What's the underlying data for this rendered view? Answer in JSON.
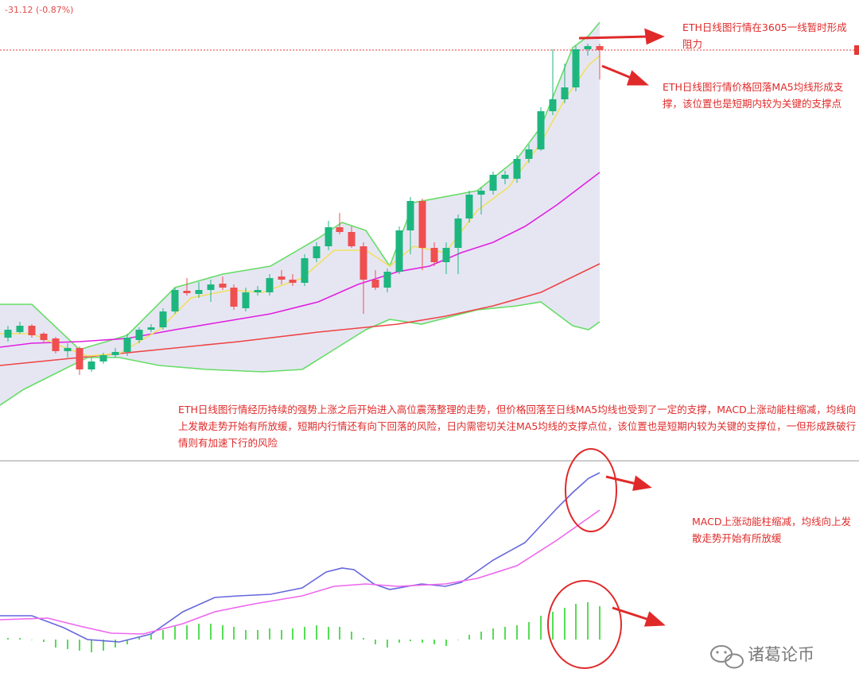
{
  "header": {
    "change": "-31.12 (-0.87%)"
  },
  "chart_data": [
    {
      "type": "candlestick",
      "x": [
        10,
        25,
        40,
        55,
        70,
        85,
        100,
        115,
        130,
        145,
        160,
        175,
        190,
        205,
        220,
        235,
        250,
        265,
        280,
        294,
        309,
        324,
        339,
        354,
        368,
        383,
        398,
        413,
        427,
        442,
        457,
        472,
        487,
        502,
        516,
        531,
        546,
        561,
        576,
        590,
        605,
        620,
        635,
        650,
        665,
        680,
        695,
        710,
        724,
        739,
        754
      ],
      "open": [
        155,
        162,
        170,
        160,
        154,
        138,
        142,
        115,
        125,
        133,
        137,
        152,
        165,
        168,
        188,
        214,
        210,
        215,
        223,
        218,
        192,
        212,
        212,
        232,
        228,
        224,
        255,
        270,
        294,
        288,
        270,
        228,
        218,
        238,
        290,
        327,
        268,
        250,
        268,
        305,
        335,
        340,
        355,
        355,
        380,
        392,
        440,
        455,
        470,
        518,
        522
      ],
      "high": [
        170,
        175,
        172,
        162,
        156,
        148,
        144,
        130,
        136,
        142,
        160,
        168,
        172,
        192,
        218,
        230,
        225,
        228,
        232,
        222,
        218,
        220,
        235,
        240,
        235,
        260,
        275,
        302,
        312,
        295,
        275,
        240,
        242,
        295,
        332,
        330,
        275,
        275,
        310,
        340,
        344,
        364,
        365,
        385,
        398,
        445,
        518,
        500,
        522,
        525,
        525
      ],
      "low": [
        150,
        160,
        155,
        148,
        135,
        130,
        108,
        112,
        122,
        130,
        132,
        148,
        162,
        165,
        185,
        208,
        205,
        200,
        215,
        190,
        188,
        208,
        208,
        222,
        220,
        220,
        250,
        265,
        285,
        268,
        185,
        215,
        212,
        235,
        260,
        240,
        245,
        235,
        235,
        300,
        310,
        335,
        348,
        350,
        375,
        390,
        435,
        450,
        465,
        510,
        480
      ],
      "close": [
        165,
        170,
        158,
        152,
        138,
        142,
        115,
        125,
        133,
        137,
        155,
        165,
        168,
        188,
        215,
        211,
        215,
        222,
        218,
        194,
        212,
        215,
        230,
        228,
        224,
        255,
        270,
        294,
        288,
        270,
        228,
        218,
        238,
        290,
        327,
        268,
        250,
        268,
        305,
        335,
        340,
        360,
        360,
        380,
        392,
        440,
        455,
        470,
        518,
        522,
        517
      ],
      "up_color": "#1db67f",
      "down_color": "#ef4f4f",
      "band_fill": "#e6e6f3",
      "xlim": [
        0,
        1080
      ],
      "ylim": [
        0,
        580
      ],
      "price_line": 517,
      "price_line_color": "#e53935",
      "series": [
        {
          "color": "#66dd66",
          "x": [
            0,
            40,
            100,
            160,
            220,
            280,
            340,
            400,
            430,
            460,
            490,
            520,
            600,
            650,
            680,
            700,
            720,
            740,
            754
          ],
          "values": [
            197,
            197,
            140,
            158,
            218,
            235,
            245,
            280,
            300,
            290,
            245,
            325,
            340,
            380,
            420,
            470,
            520,
            535,
            552
          ]
        },
        {
          "color": "#66dd66",
          "x": [
            0,
            30,
            70,
            110,
            150,
            200,
            260,
            330,
            380,
            420,
            460,
            490,
            530,
            600,
            650,
            680,
            700,
            720,
            740,
            754
          ],
          "values": [
            70,
            90,
            110,
            130,
            130,
            120,
            115,
            112,
            115,
            140,
            165,
            178,
            172,
            190,
            195,
            200,
            185,
            170,
            165,
            175
          ]
        },
        {
          "color": "#ee4444",
          "x": [
            0,
            100,
            200,
            300,
            400,
            500,
            560,
            620,
            680,
            754
          ],
          "values": [
            120,
            130,
            140,
            150,
            162,
            172,
            182,
            195,
            212,
            248
          ]
        },
        {
          "color": "#e020e0",
          "x": [
            0,
            40,
            100,
            160,
            220,
            280,
            340,
            400,
            450,
            500,
            540,
            580,
            620,
            660,
            700,
            754
          ],
          "values": [
            143,
            148,
            150,
            154,
            165,
            175,
            185,
            200,
            222,
            238,
            245,
            262,
            275,
            295,
            322,
            363
          ]
        },
        {
          "color": "#f0e060",
          "x": [
            0,
            40,
            80,
            110,
            150,
            200,
            240,
            290,
            330,
            380,
            420,
            460,
            490,
            520,
            560,
            600,
            640,
            680,
            710,
            740,
            754
          ],
          "values": [
            160,
            160,
            143,
            132,
            135,
            165,
            205,
            215,
            212,
            230,
            265,
            265,
            245,
            270,
            262,
            315,
            345,
            400,
            455,
            498,
            510
          ]
        }
      ]
    },
    {
      "type": "macd",
      "x": [
        10,
        25,
        40,
        55,
        70,
        85,
        100,
        115,
        130,
        145,
        160,
        175,
        190,
        205,
        220,
        235,
        250,
        265,
        280,
        294,
        309,
        324,
        339,
        354,
        368,
        383,
        398,
        413,
        427,
        442,
        457,
        472,
        487,
        502,
        516,
        531,
        546,
        561,
        576,
        590,
        605,
        620,
        635,
        650,
        665,
        680,
        695,
        710,
        724,
        739,
        754
      ],
      "values": [
        2,
        2,
        0,
        -3,
        -10,
        -12,
        -14,
        -16,
        -14,
        -10,
        -6,
        3,
        6,
        12,
        18,
        18,
        20,
        20,
        18,
        16,
        12,
        12,
        14,
        12,
        14,
        16,
        18,
        16,
        16,
        10,
        2,
        -6,
        -10,
        -4,
        -2,
        -4,
        -6,
        -8,
        0,
        6,
        10,
        14,
        16,
        18,
        22,
        30,
        35,
        40,
        45,
        47,
        42
      ],
      "color": "#55dd55",
      "xlim": [
        0,
        1080
      ],
      "ylim": [
        -66,
        225
      ],
      "series": [
        {
          "color": "#6666dd",
          "x": [
            0,
            40,
            80,
            110,
            150,
            190,
            230,
            270,
            300,
            340,
            380,
            410,
            430,
            445,
            470,
            490,
            530,
            560,
            580,
            620,
            660,
            700,
            720,
            740,
            754
          ],
          "values": [
            30,
            30,
            15,
            0,
            -3,
            7,
            35,
            53,
            55,
            57,
            65,
            85,
            90,
            88,
            70,
            63,
            70,
            67,
            72,
            100,
            122,
            165,
            185,
            203,
            210
          ]
        },
        {
          "color": "#ee66ee",
          "x": [
            0,
            60,
            100,
            140,
            180,
            230,
            270,
            320,
            380,
            420,
            460,
            500,
            560,
            600,
            650,
            700,
            754
          ],
          "values": [
            25,
            27,
            17,
            8,
            7,
            20,
            35,
            45,
            55,
            67,
            70,
            67,
            70,
            77,
            93,
            125,
            163
          ]
        }
      ]
    }
  ],
  "annotations": [
    "ETH日线图行情在3605一线暂时形成阻力",
    "ETH日线图行情价格回落MA5均线形成支撑，该位置也是短期内较为关键的支撑点",
    "ETH日线图行情经历持续的强势上涨之后开始进入高位震荡整理的走势，但价格回落至日线MA5均线也受到了一定的支撑，MACD上涨动能柱缩减，均线向上发散走势开始有所放缓，短期内行情还有向下回落的风险，日内需密切关注MA5均线的支撑点位，该位置也是短期内较为关键的支撑位，一但形成跌破行情则有加速下行的风险",
    "MACD上涨动能柱缩减，均线向上发散走势开始有所放缓"
  ],
  "watermark": "诸葛论币"
}
